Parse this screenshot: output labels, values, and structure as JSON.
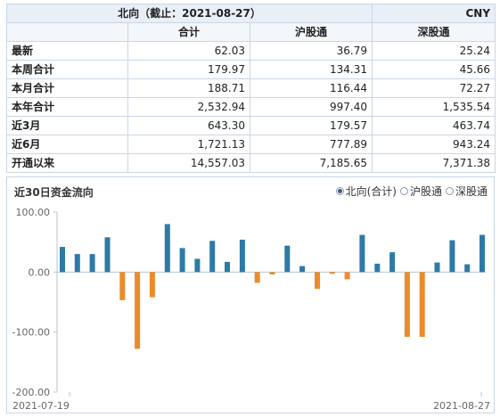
{
  "table": {
    "title": "北向（截止：2021-08-27）",
    "currency": "CNY",
    "columns": [
      "合计",
      "沪股通",
      "深股通"
    ],
    "rows": [
      {
        "label": "最新",
        "values": [
          "62.03",
          "36.79",
          "25.24"
        ]
      },
      {
        "label": "本周合计",
        "values": [
          "179.97",
          "134.31",
          "45.66"
        ]
      },
      {
        "label": "本月合计",
        "values": [
          "188.71",
          "116.44",
          "72.27"
        ]
      },
      {
        "label": "本年合计",
        "values": [
          "2,532.94",
          "997.40",
          "1,535.54"
        ]
      },
      {
        "label": "近3月",
        "values": [
          "643.30",
          "179.57",
          "463.74"
        ]
      },
      {
        "label": "近6月",
        "values": [
          "1,721.13",
          "777.89",
          "943.24"
        ]
      },
      {
        "label": "开通以来",
        "values": [
          "14,557.03",
          "7,185.65",
          "7,371.38"
        ]
      }
    ]
  },
  "chart_header": {
    "title": "近30日资金流向",
    "options": [
      {
        "label": "北向(合计)",
        "selected": true
      },
      {
        "label": "沪股通",
        "selected": false
      },
      {
        "label": "深股通",
        "selected": false
      }
    ]
  },
  "chart_data": {
    "type": "bar",
    "title": "",
    "xlabel": "",
    "ylabel": "",
    "ylim": [
      -200,
      100
    ],
    "yticks": [
      "100.00",
      "0.00",
      "-100.00",
      "-200.00"
    ],
    "ytick_values": [
      100,
      0,
      -100,
      -200
    ],
    "x_start_label": "2021-07-19",
    "x_end_label": "2021-08-27",
    "values": [
      42,
      30,
      30,
      58,
      -47,
      -128,
      -42,
      80,
      40,
      22,
      52,
      17,
      54,
      -18,
      -4,
      44,
      10,
      -28,
      -3,
      -12,
      62,
      14,
      33,
      -108,
      -108,
      16,
      53,
      13,
      62
    ],
    "colors": {
      "positive": "#2e7aa6",
      "negative": "#ec8b2a"
    }
  }
}
